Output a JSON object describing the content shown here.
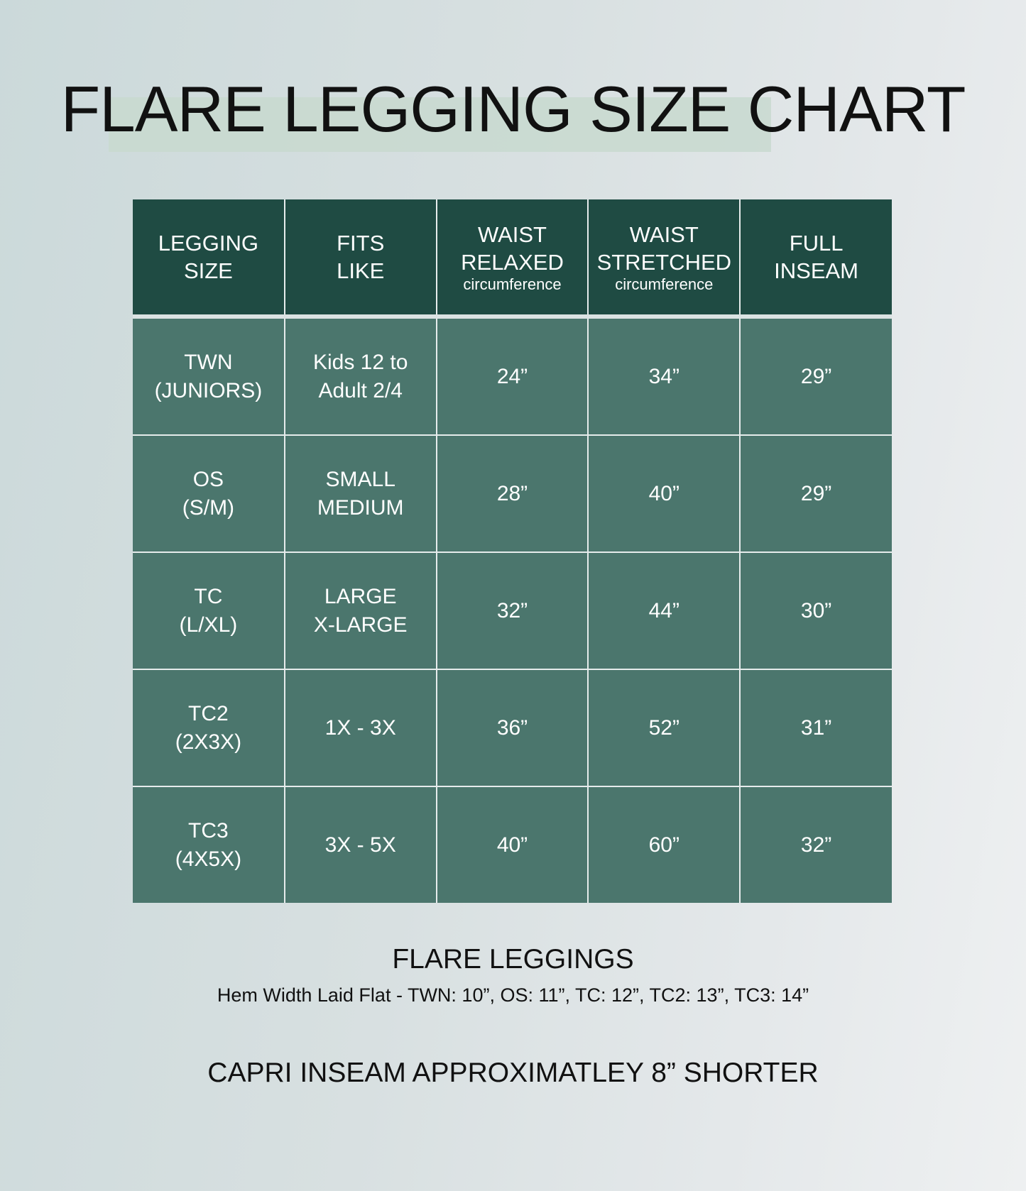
{
  "title": "FLARE LEGGING SIZE CHART",
  "table": {
    "headers": [
      {
        "line1": "LEGGING",
        "line2": "SIZE",
        "sub": ""
      },
      {
        "line1": "FITS",
        "line2": "LIKE",
        "sub": ""
      },
      {
        "line1": "WAIST",
        "line2": "RELAXED",
        "sub": "circumference"
      },
      {
        "line1": "WAIST",
        "line2": "STRETCHED",
        "sub": "circumference"
      },
      {
        "line1": "FULL",
        "line2": "INSEAM",
        "sub": ""
      }
    ],
    "rows": [
      {
        "size1": "TWN",
        "size2": "(JUNIORS)",
        "fit1": "Kids 12 to",
        "fit2": "Adult 2/4",
        "relaxed": "24”",
        "stretched": "34”",
        "inseam": "29”"
      },
      {
        "size1": "OS",
        "size2": "(S/M)",
        "fit1": "SMALL",
        "fit2": "MEDIUM",
        "relaxed": "28”",
        "stretched": "40”",
        "inseam": "29”"
      },
      {
        "size1": "TC",
        "size2": "(L/XL)",
        "fit1": "LARGE",
        "fit2": "X-LARGE",
        "relaxed": "32”",
        "stretched": "44”",
        "inseam": "30”"
      },
      {
        "size1": "TC2",
        "size2": "(2X3X)",
        "fit1": "1X - 3X",
        "fit2": "",
        "relaxed": "36”",
        "stretched": "52”",
        "inseam": "31”"
      },
      {
        "size1": "TC3",
        "size2": "(4X5X)",
        "fit1": "3X - 5X",
        "fit2": "",
        "relaxed": "40”",
        "stretched": "60”",
        "inseam": "32”"
      }
    ]
  },
  "footer": {
    "heading": "FLARE LEGGINGS",
    "hem": "Hem Width Laid Flat - TWN: 10”, OS: 11”, TC: 12”, TC2: 13”, TC3: 14”",
    "capri": "CAPRI INSEAM APPROXIMATLEY 8” SHORTER"
  },
  "colors": {
    "header_bg": "#1f4b43",
    "row_bg": "#4b766d",
    "highlight": "#c8d9cf"
  }
}
